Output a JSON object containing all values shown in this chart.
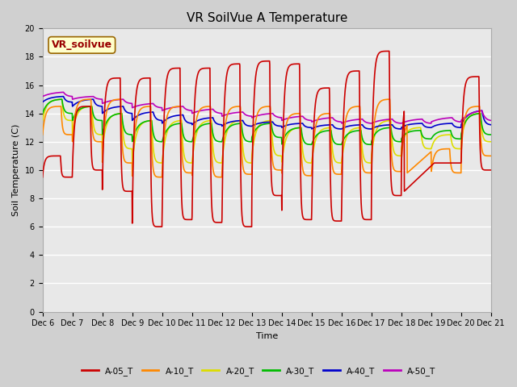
{
  "title": "VR SoilVue A Temperature",
  "xlabel": "Time",
  "ylabel": "Soil Temperature (C)",
  "ylim": [
    0,
    20
  ],
  "yticks": [
    0,
    2,
    4,
    6,
    8,
    10,
    12,
    14,
    16,
    18,
    20
  ],
  "x_tick_labels": [
    "Dec 6",
    "Dec 7",
    "Dec 8",
    "Dec 9",
    "Dec 10",
    "Dec 11",
    "Dec 12",
    "Dec 13",
    "Dec 14",
    "Dec 15",
    "Dec 16",
    "Dec 17",
    "Dec 18",
    "Dec 19",
    "Dec 20",
    "Dec 21"
  ],
  "annotation_text": "VR_soilvue",
  "annotation_bg": "#ffffcc",
  "annotation_border": "#996600",
  "annotation_color": "#990000",
  "plot_bg": "#e8e8e8",
  "fig_bg": "#d0d0d0",
  "grid_color": "#ffffff",
  "series_colors": [
    "#cc0000",
    "#ff8800",
    "#dddd00",
    "#00bb00",
    "#0000cc",
    "#bb00bb"
  ],
  "series_names": [
    "A-05_T",
    "A-10_T",
    "A-20_T",
    "A-30_T",
    "A-40_T",
    "A-50_T"
  ],
  "title_fontsize": 11,
  "tick_fontsize": 7,
  "ylabel_fontsize": 8,
  "xlabel_fontsize": 8
}
